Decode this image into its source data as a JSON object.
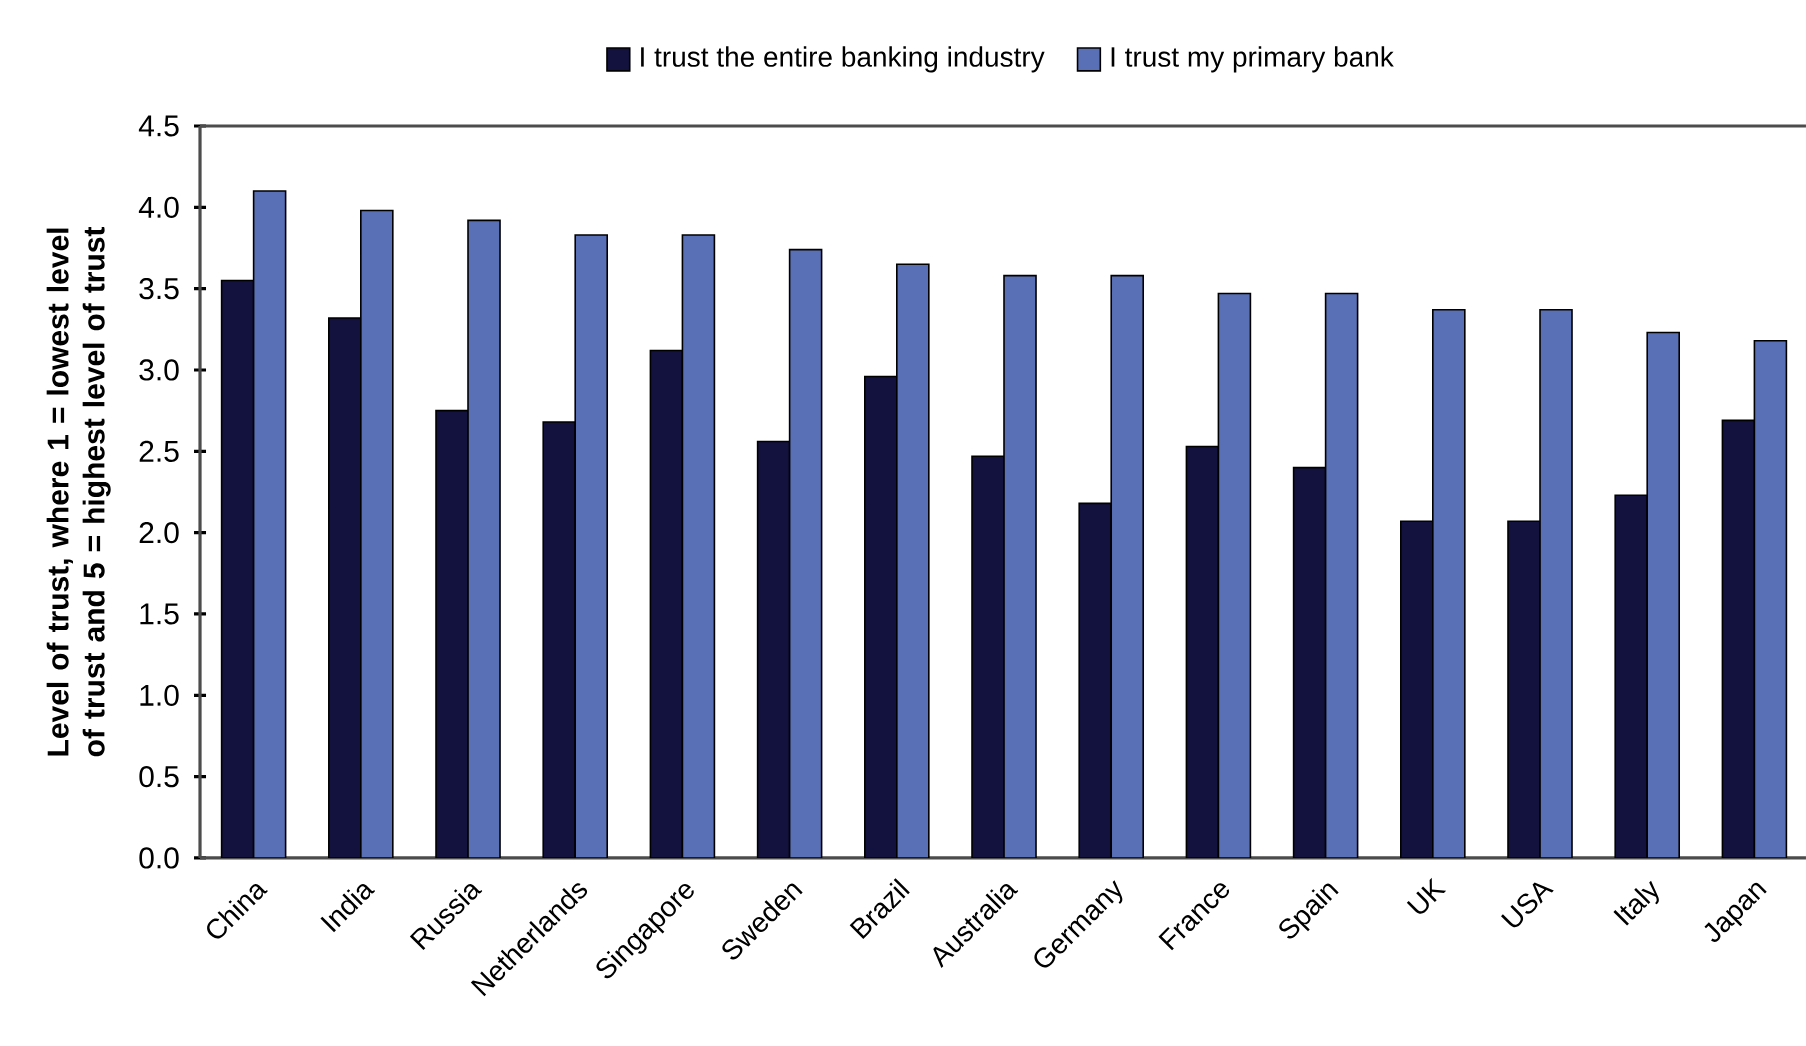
{
  "chart_data": {
    "type": "bar",
    "ylabel": "Level of trust, where 1 = lowest level of trust and 5 = highest level of trust",
    "categories": [
      "China",
      "India",
      "Russia",
      "Netherlands",
      "Singapore",
      "Sweden",
      "Brazil",
      "Australia",
      "Germany",
      "France",
      "Spain",
      "UK",
      "USA",
      "Italy",
      "Japan"
    ],
    "series": [
      {
        "name": "I trust the entire banking industry",
        "color": "#13123f",
        "values": [
          3.55,
          3.32,
          2.75,
          2.68,
          3.12,
          2.56,
          2.96,
          2.47,
          2.18,
          2.53,
          2.4,
          2.07,
          2.07,
          2.23,
          2.69
        ]
      },
      {
        "name": "I trust my primary bank",
        "color": "#5a70b6",
        "values": [
          4.1,
          3.98,
          3.92,
          3.83,
          3.83,
          3.74,
          3.65,
          3.58,
          3.58,
          3.47,
          3.47,
          3.37,
          3.37,
          3.23,
          3.18
        ]
      }
    ],
    "ylim": [
      0,
      4.5
    ],
    "yticks": [
      {
        "value": 0,
        "label": "0.0"
      },
      {
        "value": 0.5,
        "label": "0.5"
      },
      {
        "value": 1,
        "label": "1.0"
      },
      {
        "value": 1.5,
        "label": "1.5"
      },
      {
        "value": 2,
        "label": "2.0"
      },
      {
        "value": 2.5,
        "label": "2.5"
      },
      {
        "value": 3,
        "label": "3.0"
      },
      {
        "value": 3.5,
        "label": "3.5"
      },
      {
        "value": 4,
        "label": "4.0"
      },
      {
        "value": 4.5,
        "label": "4.5"
      }
    ],
    "legend": "top"
  }
}
